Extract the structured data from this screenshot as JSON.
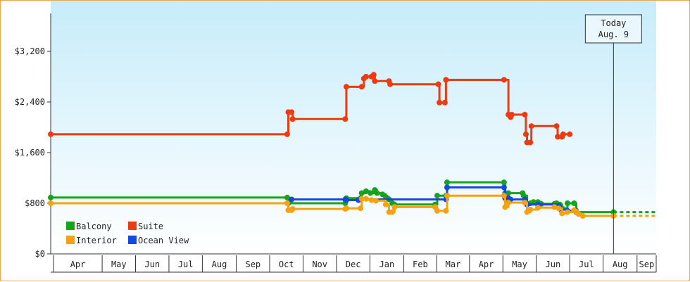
{
  "chart_data": {
    "type": "line",
    "step": true,
    "x_axis": {
      "type": "date",
      "range": [
        "2023-03-14",
        "2024-09-17"
      ],
      "tick_labels": [
        "Apr",
        "May",
        "Jun",
        "Jul",
        "Aug",
        "Sep",
        "Oct",
        "Nov",
        "Dec",
        "Jan",
        "Feb",
        "Mar",
        "Apr",
        "May",
        "Jun",
        "Jul",
        "Aug",
        "Sep"
      ],
      "tick_dates": [
        "2023-04-15",
        "2023-05-15",
        "2023-06-15",
        "2023-07-15",
        "2023-08-15",
        "2023-09-15",
        "2023-10-15",
        "2023-11-15",
        "2023-12-15",
        "2024-01-15",
        "2024-02-15",
        "2024-03-15",
        "2024-04-15",
        "2024-05-15",
        "2024-06-15",
        "2024-07-15",
        "2024-08-15",
        "2024-09-15"
      ]
    },
    "y_axis": {
      "range": [
        0,
        4000
      ],
      "ticks": [
        0,
        800,
        1600,
        2400,
        3200
      ],
      "tick_labels": [
        "$0",
        "$800",
        "$1,600",
        "$2,400",
        "$3,200"
      ],
      "grid": false
    },
    "today": {
      "line1": "Today",
      "line2": "Aug. 9",
      "date": "2024-08-09"
    },
    "legend": {
      "position": "bottom-left"
    },
    "series": [
      {
        "name": "Suite",
        "color": "#ee3a10",
        "points": [
          [
            "2023-03-14",
            1890
          ],
          [
            "2023-10-16",
            1890
          ],
          [
            "2023-10-17",
            2240
          ],
          [
            "2023-10-20",
            2240
          ],
          [
            "2023-10-21",
            2130
          ],
          [
            "2023-12-08",
            2130
          ],
          [
            "2023-12-09",
            2640
          ],
          [
            "2023-12-23",
            2640
          ],
          [
            "2023-12-25",
            2770
          ],
          [
            "2023-12-27",
            2800
          ],
          [
            "2024-01-01",
            2800
          ],
          [
            "2024-01-03",
            2830
          ],
          [
            "2024-01-04",
            2730
          ],
          [
            "2024-01-17",
            2730
          ],
          [
            "2024-01-18",
            2680
          ],
          [
            "2024-03-02",
            2680
          ],
          [
            "2024-03-03",
            2390
          ],
          [
            "2024-03-08",
            2390
          ],
          [
            "2024-03-09",
            2750
          ],
          [
            "2024-05-01",
            2750
          ],
          [
            "2024-05-05",
            2200
          ],
          [
            "2024-05-07",
            2160
          ],
          [
            "2024-05-08",
            2200
          ],
          [
            "2024-05-20",
            2200
          ],
          [
            "2024-05-21",
            1890
          ],
          [
            "2024-05-22",
            1760
          ],
          [
            "2024-05-25",
            1760
          ],
          [
            "2024-05-26",
            2020
          ],
          [
            "2024-06-18",
            2020
          ],
          [
            "2024-06-19",
            1850
          ],
          [
            "2024-06-23",
            1850
          ],
          [
            "2024-06-24",
            1890
          ],
          [
            "2024-06-30",
            1890
          ]
        ],
        "projected": []
      },
      {
        "name": "Balcony",
        "color": "#17a31b",
        "points": [
          [
            "2023-03-14",
            890
          ],
          [
            "2023-10-16",
            890
          ],
          [
            "2023-10-17",
            800
          ],
          [
            "2023-12-08",
            800
          ],
          [
            "2023-12-09",
            880
          ],
          [
            "2023-12-22",
            880
          ],
          [
            "2023-12-23",
            960
          ],
          [
            "2023-12-27",
            990
          ],
          [
            "2023-12-31",
            960
          ],
          [
            "2024-01-04",
            1010
          ],
          [
            "2024-01-06",
            960
          ],
          [
            "2024-01-11",
            940
          ],
          [
            "2024-01-14",
            900
          ],
          [
            "2024-01-17",
            860
          ],
          [
            "2024-01-20",
            800
          ],
          [
            "2024-01-22",
            780
          ],
          [
            "2024-02-28",
            780
          ],
          [
            "2024-03-01",
            920
          ],
          [
            "2024-03-09",
            920
          ],
          [
            "2024-03-10",
            1130
          ],
          [
            "2024-05-01",
            1130
          ],
          [
            "2024-05-02",
            960
          ],
          [
            "2024-05-03",
            930
          ],
          [
            "2024-05-05",
            960
          ],
          [
            "2024-05-18",
            960
          ],
          [
            "2024-05-19",
            920
          ],
          [
            "2024-05-22",
            780
          ],
          [
            "2024-05-25",
            800
          ],
          [
            "2024-05-28",
            820
          ],
          [
            "2024-06-01",
            820
          ],
          [
            "2024-06-04",
            790
          ],
          [
            "2024-06-16",
            790
          ],
          [
            "2024-06-18",
            800
          ],
          [
            "2024-06-21",
            780
          ],
          [
            "2024-06-23",
            720
          ],
          [
            "2024-06-28",
            800
          ],
          [
            "2024-07-04",
            800
          ],
          [
            "2024-07-06",
            660
          ],
          [
            "2024-08-09",
            660
          ]
        ],
        "projected": [
          [
            "2024-08-09",
            660
          ],
          [
            "2024-09-17",
            660
          ]
        ]
      },
      {
        "name": "Ocean View",
        "color": "#1148e8",
        "points": [
          [
            "2023-10-20",
            860
          ],
          [
            "2023-12-08",
            860
          ],
          [
            "2023-12-09",
            850
          ],
          [
            "2023-12-20",
            850
          ],
          [
            "2023-12-22",
            860
          ],
          [
            "2024-03-09",
            860
          ],
          [
            "2024-03-10",
            1050
          ],
          [
            "2024-05-01",
            1050
          ],
          [
            "2024-05-02",
            880
          ],
          [
            "2024-05-05",
            880
          ],
          [
            "2024-05-07",
            860
          ],
          [
            "2024-05-20",
            860
          ],
          [
            "2024-05-22",
            780
          ],
          [
            "2024-06-01",
            780
          ],
          [
            "2024-06-20",
            760
          ],
          [
            "2024-06-22",
            700
          ],
          [
            "2024-06-28",
            680
          ],
          [
            "2024-07-06",
            680
          ]
        ],
        "projected": []
      },
      {
        "name": "Interior",
        "color": "#f6a210",
        "points": [
          [
            "2023-03-14",
            800
          ],
          [
            "2023-10-16",
            800
          ],
          [
            "2023-10-17",
            690
          ],
          [
            "2023-10-20",
            690
          ],
          [
            "2023-10-21",
            710
          ],
          [
            "2023-12-08",
            710
          ],
          [
            "2023-12-09",
            720
          ],
          [
            "2023-12-22",
            720
          ],
          [
            "2023-12-23",
            870
          ],
          [
            "2023-12-27",
            870
          ],
          [
            "2024-01-01",
            850
          ],
          [
            "2024-01-05",
            840
          ],
          [
            "2024-01-14",
            780
          ],
          [
            "2024-01-17",
            660
          ],
          [
            "2024-01-20",
            660
          ],
          [
            "2024-01-22",
            740
          ],
          [
            "2024-02-28",
            740
          ],
          [
            "2024-03-01",
            680
          ],
          [
            "2024-03-09",
            680
          ],
          [
            "2024-03-10",
            920
          ],
          [
            "2024-05-01",
            920
          ],
          [
            "2024-05-02",
            740
          ],
          [
            "2024-05-05",
            810
          ],
          [
            "2024-05-20",
            810
          ],
          [
            "2024-05-22",
            660
          ],
          [
            "2024-05-25",
            700
          ],
          [
            "2024-06-01",
            730
          ],
          [
            "2024-06-16",
            740
          ],
          [
            "2024-06-20",
            720
          ],
          [
            "2024-06-23",
            640
          ],
          [
            "2024-06-28",
            660
          ],
          [
            "2024-07-04",
            690
          ],
          [
            "2024-07-06",
            670
          ],
          [
            "2024-07-08",
            630
          ],
          [
            "2024-07-12",
            600
          ],
          [
            "2024-08-09",
            600
          ]
        ],
        "projected": [
          [
            "2024-08-09",
            600
          ],
          [
            "2024-09-17",
            600
          ]
        ]
      }
    ]
  },
  "legend_items": [
    {
      "name": "Balcony",
      "color": "#17a31b"
    },
    {
      "name": "Suite",
      "color": "#ee3a10"
    },
    {
      "name": "Interior",
      "color": "#f6a210"
    },
    {
      "name": "Ocean View",
      "color": "#1148e8"
    }
  ],
  "theme": {
    "plot_top": "#c7ecfa",
    "plot_bottom": "#ffffff",
    "axis": "#333333"
  }
}
